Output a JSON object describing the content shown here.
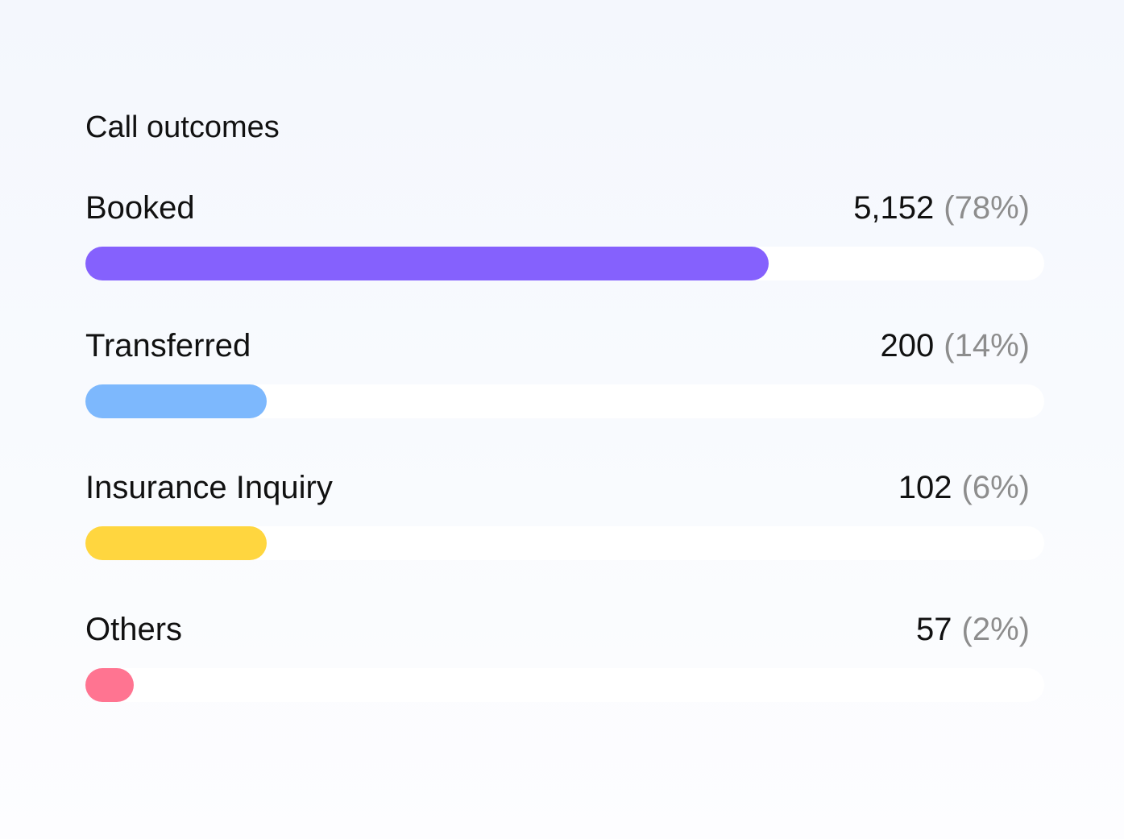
{
  "widget": {
    "title": "Call outcomes"
  },
  "outcomes": [
    {
      "label": "Booked",
      "count": "5,152",
      "percent": "(78%)",
      "fill_fraction": 0.713,
      "color": "#8561fd"
    },
    {
      "label": "Transferred",
      "count": "200",
      "percent": "(14%)",
      "fill_fraction": 0.189,
      "color": "#7db8fd"
    },
    {
      "label": "Insurance Inquiry",
      "count": "102",
      "percent": "(6%)",
      "fill_fraction": 0.189,
      "color": "#ffd63f"
    },
    {
      "label": "Others",
      "count": "57",
      "percent": "(2%)",
      "fill_fraction": 0.05,
      "color": "#ff7491"
    }
  ]
}
